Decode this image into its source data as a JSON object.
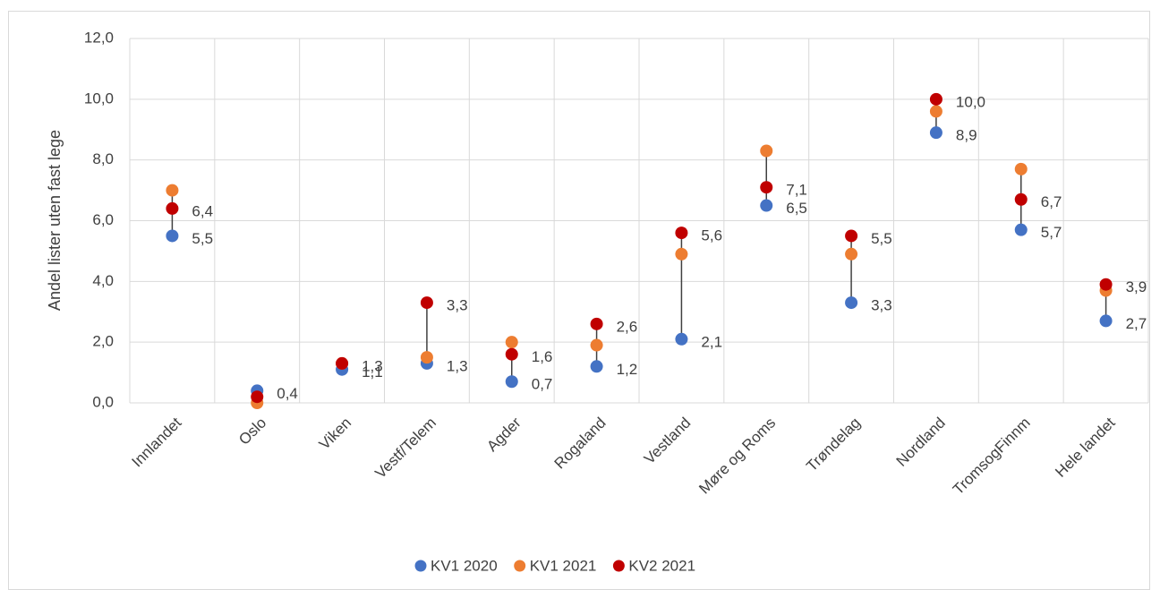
{
  "chart_data": {
    "type": "dot",
    "y_label": "Andel lister uten fast lege",
    "categories": [
      "Innlandet",
      "Oslo",
      "Viken",
      "Vestf/Telem",
      "Agder",
      "Rogaland",
      "Vestland",
      "Møre og Roms",
      "Trøndelag",
      "Nordland",
      "TromsogFinnm",
      "Hele landet"
    ],
    "series": [
      {
        "name": "KV1 2020",
        "color": "#4472c4",
        "values": [
          5.5,
          0.4,
          1.1,
          1.3,
          0.7,
          1.2,
          2.1,
          6.5,
          3.3,
          8.9,
          5.7,
          2.7
        ],
        "value_labels": [
          "5,5",
          "0,4",
          "1,1",
          "1,3",
          "0,7",
          "1,2",
          "2,1",
          "6,5",
          "3,3",
          "8,9",
          "5,7",
          "2,7"
        ]
      },
      {
        "name": "KV1 2021",
        "color": "#ed7d31",
        "values": [
          7.0,
          0.0,
          1.3,
          1.5,
          2.0,
          1.9,
          4.9,
          8.3,
          4.9,
          9.6,
          7.7,
          3.7
        ]
      },
      {
        "name": "KV2 2021",
        "color": "#c00000",
        "values": [
          6.4,
          0.2,
          1.3,
          3.3,
          1.6,
          2.6,
          5.6,
          7.1,
          5.5,
          10.0,
          6.7,
          3.9
        ],
        "value_labels": [
          "6,4",
          null,
          "1,3",
          "3,3",
          "1,6",
          "2,6",
          "5,6",
          "7,1",
          "5,5",
          "10,0",
          "6,7",
          "3,9"
        ]
      }
    ],
    "ylim": [
      0,
      12
    ],
    "yticks": [
      {
        "value": 0,
        "label": "0,0"
      },
      {
        "value": 2,
        "label": "2,0"
      },
      {
        "value": 4,
        "label": "4,0"
      },
      {
        "value": 6,
        "label": "6,0"
      },
      {
        "value": 8,
        "label": "8,0"
      },
      {
        "value": 10,
        "label": "10,0"
      },
      {
        "value": 12,
        "label": "12,0"
      }
    ],
    "grid": true,
    "legend": "bottom"
  }
}
